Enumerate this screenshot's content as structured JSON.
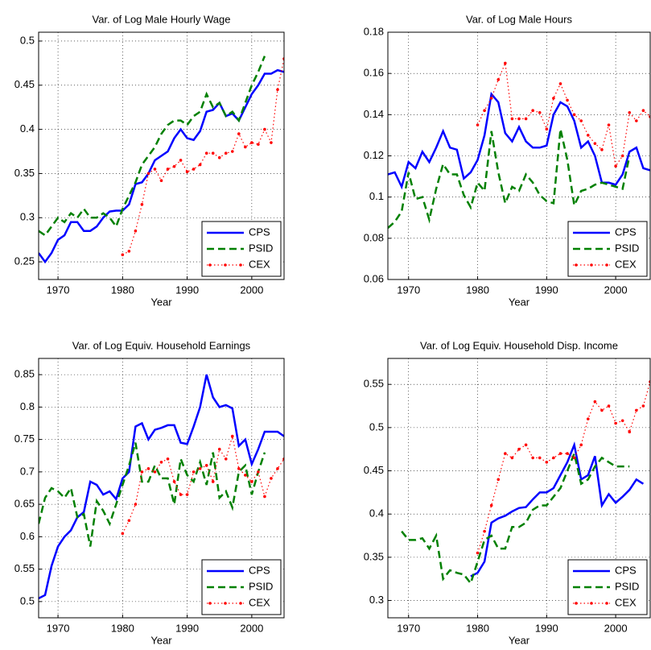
{
  "chart_data": [
    {
      "type": "line",
      "title": "Var. of Log Male Hourly Wage",
      "x_label": "Year",
      "x": [
        1967,
        1968,
        1969,
        1970,
        1971,
        1972,
        1973,
        1974,
        1975,
        1976,
        1977,
        1978,
        1979,
        1980,
        1981,
        1982,
        1983,
        1984,
        1985,
        1986,
        1987,
        1988,
        1989,
        1990,
        1991,
        1992,
        1993,
        1994,
        1995,
        1996,
        1997,
        1998,
        1999,
        2000,
        2001,
        2002,
        2003,
        2004,
        2005
      ],
      "xlim": [
        1967,
        2005
      ],
      "xticks": [
        1970,
        1980,
        1990,
        2000
      ],
      "ylim": [
        0.23,
        0.51
      ],
      "yticks": [
        0.25,
        0.3,
        0.35,
        0.4,
        0.45,
        0.5
      ],
      "grid": true,
      "legend": "lower right",
      "series": [
        {
          "name": "CPS",
          "color": "#0000ff",
          "dash": "solid",
          "values": [
            0.26,
            0.25,
            0.26,
            0.275,
            0.28,
            0.295,
            0.295,
            0.285,
            0.285,
            0.29,
            0.3,
            0.307,
            0.308,
            0.308,
            0.315,
            0.338,
            0.34,
            0.35,
            0.365,
            0.37,
            0.375,
            0.39,
            0.4,
            0.39,
            0.388,
            0.398,
            0.42,
            0.422,
            0.43,
            0.415,
            0.418,
            0.41,
            0.425,
            0.44,
            0.45,
            0.463,
            0.463,
            0.467,
            0.465
          ]
        },
        {
          "name": "PSID",
          "color": "#008000",
          "dash": "dashed",
          "values": [
            0.285,
            0.28,
            0.29,
            0.3,
            0.295,
            0.305,
            0.3,
            0.31,
            0.3,
            0.3,
            0.305,
            0.3,
            0.29,
            0.31,
            0.325,
            0.34,
            0.36,
            0.37,
            0.38,
            0.395,
            0.405,
            0.41,
            0.41,
            0.405,
            0.415,
            0.42,
            0.44,
            0.425,
            0.43,
            0.415,
            0.42,
            0.41,
            0.43,
            0.45,
            0.465,
            0.483,
            null,
            null,
            null
          ]
        },
        {
          "name": "CEX",
          "color": "#ff0000",
          "dash": "dotted",
          "values": [
            null,
            null,
            null,
            null,
            null,
            null,
            null,
            null,
            null,
            null,
            null,
            null,
            null,
            0.258,
            0.262,
            0.285,
            0.315,
            0.35,
            0.355,
            0.342,
            0.355,
            0.358,
            0.365,
            0.352,
            0.355,
            0.36,
            0.373,
            0.373,
            0.368,
            0.373,
            0.375,
            0.395,
            0.38,
            0.385,
            0.383,
            0.4,
            0.385,
            0.445,
            0.48
          ]
        }
      ]
    },
    {
      "type": "line",
      "title": "Var. of Log Male Hours",
      "x_label": "Year",
      "x": [
        1967,
        1968,
        1969,
        1970,
        1971,
        1972,
        1973,
        1974,
        1975,
        1976,
        1977,
        1978,
        1979,
        1980,
        1981,
        1982,
        1983,
        1984,
        1985,
        1986,
        1987,
        1988,
        1989,
        1990,
        1991,
        1992,
        1993,
        1994,
        1995,
        1996,
        1997,
        1998,
        1999,
        2000,
        2001,
        2002,
        2003,
        2004,
        2005
      ],
      "xlim": [
        1967,
        2005
      ],
      "xticks": [
        1970,
        1980,
        1990,
        2000
      ],
      "ylim": [
        0.06,
        0.18
      ],
      "yticks": [
        0.06,
        0.08,
        0.1,
        0.12,
        0.14,
        0.16,
        0.18
      ],
      "grid": true,
      "legend": "lower right",
      "series": [
        {
          "name": "CPS",
          "color": "#0000ff",
          "dash": "solid",
          "values": [
            0.111,
            0.112,
            0.105,
            0.117,
            0.114,
            0.122,
            0.117,
            0.124,
            0.132,
            0.124,
            0.123,
            0.109,
            0.112,
            0.118,
            0.13,
            0.15,
            0.146,
            0.131,
            0.127,
            0.134,
            0.127,
            0.124,
            0.124,
            0.125,
            0.14,
            0.146,
            0.144,
            0.137,
            0.124,
            0.127,
            0.12,
            0.107,
            0.107,
            0.106,
            0.111,
            0.122,
            0.124,
            0.114,
            0.113
          ]
        },
        {
          "name": "PSID",
          "color": "#008000",
          "dash": "dashed",
          "values": [
            0.085,
            0.088,
            0.093,
            0.112,
            0.099,
            0.1,
            0.089,
            0.104,
            0.116,
            0.111,
            0.111,
            0.101,
            0.095,
            0.107,
            0.103,
            0.132,
            0.112,
            0.097,
            0.105,
            0.103,
            0.111,
            0.107,
            0.101,
            0.098,
            0.097,
            0.133,
            0.118,
            0.096,
            0.103,
            0.104,
            0.106,
            0.107,
            0.106,
            0.105,
            0.104,
            0.12,
            null,
            null,
            null
          ]
        },
        {
          "name": "CEX",
          "color": "#ff0000",
          "dash": "dotted",
          "values": [
            null,
            null,
            null,
            null,
            null,
            null,
            null,
            null,
            null,
            null,
            null,
            null,
            null,
            0.135,
            0.142,
            0.148,
            0.157,
            0.165,
            0.138,
            0.138,
            0.138,
            0.142,
            0.141,
            0.133,
            0.148,
            0.155,
            0.147,
            0.14,
            0.137,
            0.13,
            0.126,
            0.123,
            0.135,
            0.115,
            0.12,
            0.141,
            0.137,
            0.142,
            0.139
          ]
        }
      ]
    },
    {
      "type": "line",
      "title": "Var. of Log Equiv. Household Earnings",
      "x_label": "Year",
      "x": [
        1967,
        1968,
        1969,
        1970,
        1971,
        1972,
        1973,
        1974,
        1975,
        1976,
        1977,
        1978,
        1979,
        1980,
        1981,
        1982,
        1983,
        1984,
        1985,
        1986,
        1987,
        1988,
        1989,
        1990,
        1991,
        1992,
        1993,
        1994,
        1995,
        1996,
        1997,
        1998,
        1999,
        2000,
        2001,
        2002,
        2003,
        2004,
        2005
      ],
      "xlim": [
        1967,
        2005
      ],
      "xticks": [
        1970,
        1980,
        1990,
        2000
      ],
      "ylim": [
        0.475,
        0.875
      ],
      "yticks": [
        0.5,
        0.55,
        0.6,
        0.65,
        0.7,
        0.75,
        0.8,
        0.85
      ],
      "grid": true,
      "legend": "lower right",
      "series": [
        {
          "name": "CPS",
          "color": "#0000ff",
          "dash": "solid",
          "values": [
            0.505,
            0.51,
            0.555,
            0.585,
            0.6,
            0.61,
            0.63,
            0.638,
            0.685,
            0.68,
            0.665,
            0.67,
            0.658,
            0.69,
            0.7,
            0.77,
            0.775,
            0.75,
            0.765,
            0.768,
            0.772,
            0.772,
            0.745,
            0.743,
            0.77,
            0.8,
            0.85,
            0.815,
            0.8,
            0.803,
            0.798,
            0.74,
            0.75,
            0.712,
            0.735,
            0.762,
            0.762,
            0.762,
            0.755
          ]
        },
        {
          "name": "PSID",
          "color": "#008000",
          "dash": "dashed",
          "values": [
            0.62,
            0.66,
            0.675,
            0.67,
            0.66,
            0.675,
            0.63,
            0.635,
            0.585,
            0.655,
            0.64,
            0.62,
            0.65,
            0.68,
            0.71,
            0.745,
            0.685,
            0.685,
            0.71,
            0.69,
            0.69,
            0.65,
            0.72,
            0.695,
            0.685,
            0.715,
            0.68,
            0.73,
            0.66,
            0.67,
            0.645,
            0.7,
            0.71,
            0.665,
            0.7,
            0.73,
            null,
            null,
            null
          ]
        },
        {
          "name": "CEX",
          "color": "#ff0000",
          "dash": "dotted",
          "values": [
            null,
            null,
            null,
            null,
            null,
            null,
            null,
            null,
            null,
            null,
            null,
            null,
            null,
            0.605,
            0.625,
            0.65,
            0.7,
            0.705,
            0.7,
            0.715,
            0.72,
            0.685,
            0.665,
            0.665,
            0.7,
            0.705,
            0.71,
            0.685,
            0.735,
            0.72,
            0.755,
            0.705,
            0.695,
            0.685,
            0.7,
            0.662,
            0.69,
            0.705,
            0.72
          ]
        }
      ]
    },
    {
      "type": "line",
      "title": "Var. of Log Equiv. Household Disp. Income",
      "x_label": "Year",
      "x": [
        1967,
        1968,
        1969,
        1970,
        1971,
        1972,
        1973,
        1974,
        1975,
        1976,
        1977,
        1978,
        1979,
        1980,
        1981,
        1982,
        1983,
        1984,
        1985,
        1986,
        1987,
        1988,
        1989,
        1990,
        1991,
        1992,
        1993,
        1994,
        1995,
        1996,
        1997,
        1998,
        1999,
        2000,
        2001,
        2002,
        2003,
        2004,
        2005
      ],
      "xlim": [
        1967,
        2005
      ],
      "xticks": [
        1970,
        1980,
        1990,
        2000
      ],
      "ylim": [
        0.28,
        0.58
      ],
      "yticks": [
        0.3,
        0.35,
        0.4,
        0.45,
        0.5,
        0.55
      ],
      "grid": true,
      "legend": "lower right",
      "series": [
        {
          "name": "CPS",
          "color": "#0000ff",
          "dash": "solid",
          "values": [
            null,
            null,
            null,
            null,
            null,
            null,
            null,
            null,
            null,
            null,
            null,
            null,
            0.328,
            0.332,
            0.345,
            0.39,
            0.395,
            0.398,
            0.403,
            0.407,
            0.408,
            0.417,
            0.425,
            0.425,
            0.43,
            0.445,
            0.46,
            0.48,
            0.44,
            0.445,
            0.467,
            0.41,
            0.423,
            0.413,
            0.42,
            0.428,
            0.44,
            0.435,
            null
          ]
        },
        {
          "name": "PSID",
          "color": "#008000",
          "dash": "dashed",
          "values": [
            null,
            null,
            0.38,
            0.37,
            0.37,
            0.372,
            0.36,
            0.375,
            0.325,
            0.335,
            0.332,
            0.33,
            0.32,
            0.345,
            0.37,
            0.375,
            0.36,
            0.36,
            0.385,
            0.385,
            0.39,
            0.405,
            0.41,
            0.41,
            0.42,
            0.43,
            0.45,
            0.47,
            0.435,
            0.44,
            0.455,
            0.465,
            0.46,
            0.455,
            0.455,
            0.455,
            null,
            null,
            null
          ]
        },
        {
          "name": "CEX",
          "color": "#ff0000",
          "dash": "dotted",
          "values": [
            null,
            null,
            null,
            null,
            null,
            null,
            null,
            null,
            null,
            null,
            null,
            null,
            null,
            0.355,
            0.38,
            0.41,
            0.44,
            0.47,
            0.465,
            0.475,
            0.48,
            0.465,
            0.465,
            0.46,
            0.465,
            0.47,
            0.47,
            0.465,
            0.48,
            0.51,
            0.53,
            0.52,
            0.525,
            0.505,
            0.508,
            0.495,
            0.52,
            0.525,
            0.553
          ]
        }
      ]
    }
  ]
}
